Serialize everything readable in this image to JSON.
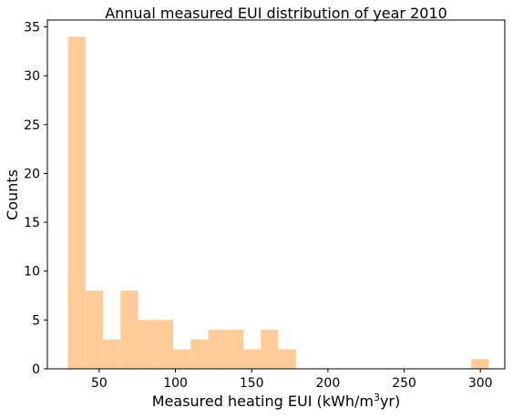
{
  "chart_data": {
    "type": "bar",
    "title": "Annual measured EUI distribution of year 2010",
    "xlabel": "Measured heating EUI (kWh/m",
    "xlabel_sup": "3",
    "xlabel_suffix": "yr)",
    "ylabel": "Counts",
    "xlim": [
      16,
      316
    ],
    "ylim": [
      0,
      35.7
    ],
    "x_ticks": [
      50,
      100,
      150,
      200,
      250,
      300
    ],
    "y_ticks": [
      0,
      5,
      10,
      15,
      20,
      25,
      30,
      35
    ],
    "grid": false,
    "bin_edges": [
      29.5,
      41.0,
      52.5,
      64.0,
      75.5,
      87.0,
      98.5,
      110.0,
      121.5,
      133.0,
      144.5,
      156.0,
      167.5,
      179.0,
      190.5,
      202.0,
      213.5,
      225.0,
      236.5,
      248.0,
      259.5,
      271.0,
      282.5,
      294.0,
      305.5
    ],
    "counts": [
      34,
      8,
      3,
      8,
      5,
      5,
      2,
      3,
      4,
      4,
      2,
      4,
      2,
      0,
      0,
      0,
      0,
      0,
      0,
      0,
      0,
      0,
      0,
      1
    ],
    "bar_color": "#ffcc99"
  }
}
